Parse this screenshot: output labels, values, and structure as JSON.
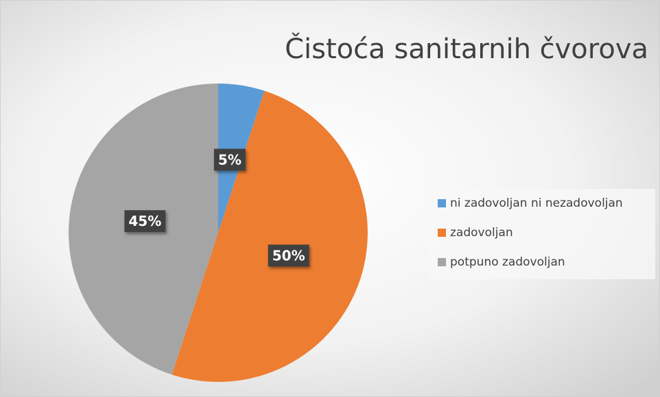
{
  "chart_data": {
    "type": "pie",
    "title": "Čistoća sanitarnih čvorova",
    "categories": [
      "ni zadovoljan ni nezadovoljan",
      "zadovoljan",
      "potpuno zadovoljan"
    ],
    "values": [
      5,
      50,
      45
    ],
    "value_labels": [
      "5%",
      "50%",
      "45%"
    ],
    "colors": [
      "#5b9bd5",
      "#ed7d31",
      "#a5a5a5"
    ],
    "legend": "right"
  }
}
